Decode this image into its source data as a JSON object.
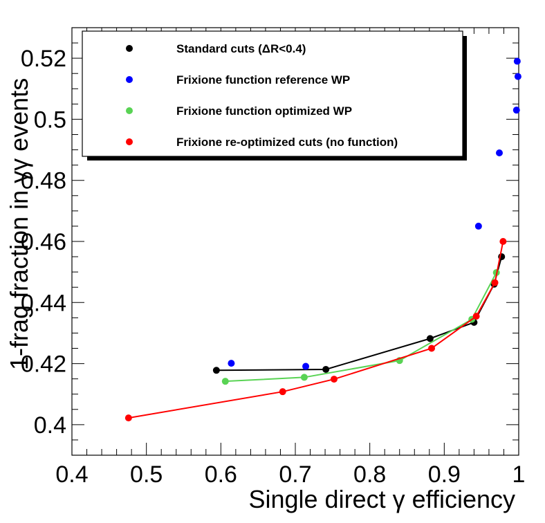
{
  "chart_data": {
    "type": "scatter",
    "xlabel": "Single direct γ efficiency",
    "ylabel": "1-frag fraction in γγ events",
    "xlim": [
      0.4,
      1.0
    ],
    "ylim": [
      0.39,
      0.53
    ],
    "x_ticks": [
      0.4,
      0.5,
      0.6,
      0.7,
      0.8,
      0.9,
      1.0
    ],
    "x_tick_labels": [
      "0.4",
      "0.5",
      "0.6",
      "0.7",
      "0.8",
      "0.9",
      "1"
    ],
    "y_ticks": [
      0.4,
      0.42,
      0.44,
      0.46,
      0.48,
      0.5,
      0.52
    ],
    "y_tick_labels": [
      "0.4",
      "0.42",
      "0.44",
      "0.46",
      "0.48",
      "0.5",
      "0.52"
    ],
    "legend_position": "top-left",
    "series": [
      {
        "name": "Standard cuts (ΔR<0.4)",
        "color": "#000000",
        "connected": true,
        "x": [
          0.594,
          0.741,
          0.881,
          0.94,
          0.967,
          0.977
        ],
        "y": [
          0.4178,
          0.4181,
          0.4282,
          0.4335,
          0.446,
          0.455
        ]
      },
      {
        "name": "Frixione function reference WP",
        "color": "#0000ff",
        "connected": false,
        "x": [
          0.614,
          0.714,
          0.946,
          0.974,
          0.997,
          0.999,
          0.998
        ],
        "y": [
          0.4201,
          0.4191,
          0.465,
          0.489,
          0.503,
          0.514,
          0.519
        ]
      },
      {
        "name": "Frixione function optimized WP",
        "color": "#59d354",
        "connected": true,
        "x": [
          0.606,
          0.712,
          0.84,
          0.937,
          0.97
        ],
        "y": [
          0.4142,
          0.4155,
          0.421,
          0.4345,
          0.4498
        ]
      },
      {
        "name": "Frixione re-optimized cuts (no function)",
        "color": "#ff0000",
        "connected": true,
        "x": [
          0.476,
          0.683,
          0.752,
          0.883,
          0.943,
          0.968,
          0.979
        ],
        "y": [
          0.4022,
          0.4108,
          0.4149,
          0.425,
          0.4355,
          0.4465,
          0.46
        ]
      }
    ]
  }
}
